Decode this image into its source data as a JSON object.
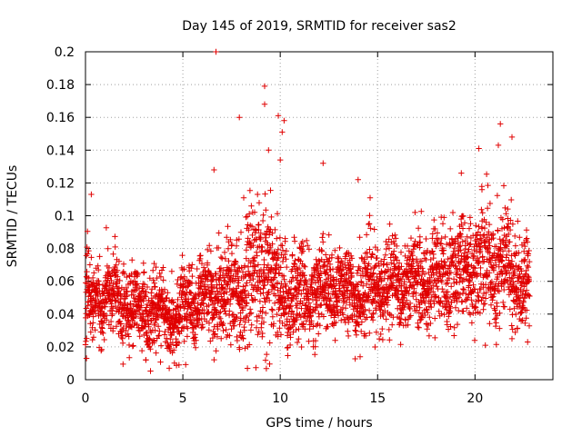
{
  "chart_data": {
    "type": "scatter",
    "title": "Day 145 of 2019, SRMTID for receiver sas2",
    "xlabel": "GPS time / hours",
    "ylabel": "SRMTID / TECUs",
    "xlim": [
      0,
      24
    ],
    "ylim": [
      0,
      0.2
    ],
    "grid": true,
    "marker": "plus",
    "marker_color": "#e00000",
    "xticks": [
      0,
      5,
      10,
      15,
      20
    ],
    "xtick_labels": [
      "0",
      "5",
      "10",
      "15",
      "20"
    ],
    "yticks": [
      0,
      0.02,
      0.04,
      0.06,
      0.08,
      0.1,
      0.12,
      0.14,
      0.16,
      0.18,
      0.2
    ],
    "ytick_labels": [
      "0",
      "0.02",
      "0.04",
      "0.06",
      "0.08",
      "0.1",
      "0.12",
      "0.14",
      "0.16",
      "0.18",
      "0.2"
    ],
    "trend": {
      "x": [
        0,
        1,
        2,
        3,
        4,
        4.5,
        5,
        6,
        7,
        8,
        9,
        10,
        11,
        12,
        13,
        14,
        15,
        16,
        17,
        18,
        19,
        20,
        21,
        22,
        22.8
      ],
      "y": [
        0.045,
        0.052,
        0.048,
        0.042,
        0.04,
        0.038,
        0.045,
        0.05,
        0.055,
        0.058,
        0.068,
        0.055,
        0.05,
        0.054,
        0.056,
        0.052,
        0.057,
        0.06,
        0.06,
        0.062,
        0.066,
        0.07,
        0.072,
        0.066,
        0.06
      ]
    },
    "spread": {
      "x": [
        0,
        2,
        4,
        6,
        8,
        9,
        10,
        12,
        14,
        16,
        18,
        20,
        21,
        22,
        22.8
      ],
      "y": [
        0.012,
        0.011,
        0.011,
        0.012,
        0.016,
        0.024,
        0.016,
        0.013,
        0.013,
        0.013,
        0.014,
        0.016,
        0.02,
        0.016,
        0.012
      ]
    },
    "point_count": 3400,
    "notable_points": [
      {
        "x": 6.7,
        "y": 0.2
      },
      {
        "x": 9.2,
        "y": 0.179
      },
      {
        "x": 9.2,
        "y": 0.168
      },
      {
        "x": 9.9,
        "y": 0.161
      },
      {
        "x": 10.2,
        "y": 0.158
      },
      {
        "x": 10.1,
        "y": 0.151
      },
      {
        "x": 7.9,
        "y": 0.16
      },
      {
        "x": 21.3,
        "y": 0.156
      },
      {
        "x": 21.9,
        "y": 0.148
      },
      {
        "x": 20.2,
        "y": 0.141
      },
      {
        "x": 21.2,
        "y": 0.143
      },
      {
        "x": 9.4,
        "y": 0.14
      },
      {
        "x": 10.0,
        "y": 0.134
      },
      {
        "x": 12.2,
        "y": 0.132
      },
      {
        "x": 14.0,
        "y": 0.122
      },
      {
        "x": 0.3,
        "y": 0.113
      },
      {
        "x": 6.6,
        "y": 0.128
      },
      {
        "x": 19.3,
        "y": 0.126
      },
      {
        "x": 4.3,
        "y": 0.007
      },
      {
        "x": 4.8,
        "y": 0.009
      },
      {
        "x": 14.1,
        "y": 0.014
      },
      {
        "x": 0.05,
        "y": 0.013
      },
      {
        "x": 22.7,
        "y": 0.023
      },
      {
        "x": 21.9,
        "y": 0.025
      },
      {
        "x": 3.1,
        "y": 0.012
      }
    ]
  }
}
